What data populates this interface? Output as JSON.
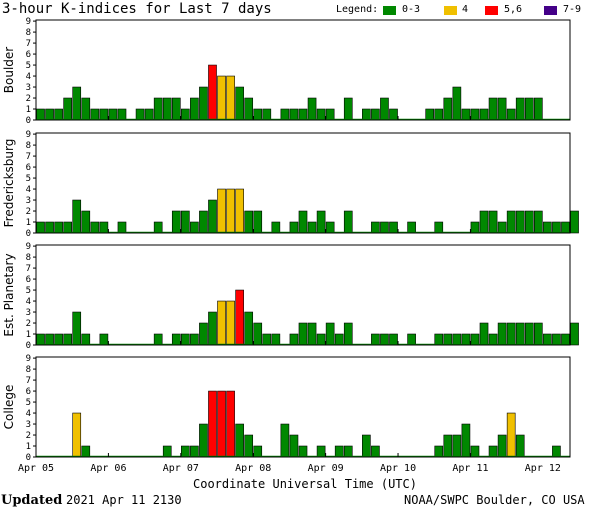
{
  "title": "3-hour K-indices for Last 7 days",
  "legend": {
    "label": "Legend:",
    "items": [
      {
        "label": "0-3",
        "color": "#008800"
      },
      {
        "label": "4",
        "color": "#f0c000"
      },
      {
        "label": "5,6",
        "color": "#ff0000"
      },
      {
        "label": "7-9",
        "color": "#440088"
      }
    ]
  },
  "xlabel": "Coordinate Universal Time (UTC)",
  "footer": {
    "updated_label": "Updated",
    "updated_value": "2021 Apr 11 2130",
    "source": "NOAA/SWPC Boulder, CO USA"
  },
  "chart_data": {
    "type": "bar",
    "x_tick_labels": [
      "Apr 05",
      "Apr 06",
      "Apr 07",
      "Apr 08",
      "Apr 09",
      "Apr 10",
      "Apr 11",
      "Apr 12"
    ],
    "ylim": [
      0,
      9
    ],
    "y_ticks": [
      0,
      1,
      2,
      3,
      4,
      5,
      6,
      7,
      8,
      9
    ],
    "panels": [
      {
        "name": "Boulder",
        "values": [
          1,
          1,
          1,
          2,
          3,
          2,
          1,
          1,
          1,
          1,
          0,
          1,
          1,
          2,
          2,
          2,
          1,
          2,
          3,
          5,
          4,
          4,
          3,
          2,
          1,
          1,
          0,
          1,
          1,
          1,
          2,
          1,
          1,
          0,
          2,
          0,
          1,
          1,
          2,
          1,
          0,
          0,
          0,
          1,
          1,
          2,
          3,
          1,
          1,
          1,
          2,
          2,
          1,
          2,
          2,
          2,
          0
        ]
      },
      {
        "name": "Fredericksburg",
        "values": [
          1,
          1,
          1,
          1,
          3,
          2,
          1,
          1,
          0,
          1,
          0,
          0,
          0,
          1,
          0,
          2,
          2,
          1,
          2,
          3,
          4,
          4,
          4,
          2,
          2,
          0,
          1,
          0,
          1,
          2,
          1,
          2,
          1,
          0,
          2,
          0,
          0,
          1,
          1,
          1,
          0,
          1,
          0,
          0,
          1,
          0,
          0,
          0,
          1,
          2,
          2,
          1,
          2,
          2,
          2,
          2,
          1,
          1,
          1,
          2,
          0
        ]
      },
      {
        "name": "Est. Planetary",
        "values": [
          1,
          1,
          1,
          1,
          3,
          1,
          0,
          1,
          0,
          0,
          0,
          0,
          0,
          1,
          0,
          1,
          1,
          1,
          2,
          3,
          4,
          4,
          5,
          3,
          2,
          1,
          1,
          0,
          1,
          2,
          2,
          1,
          2,
          1,
          2,
          0,
          0,
          1,
          1,
          1,
          0,
          1,
          0,
          0,
          1,
          1,
          1,
          1,
          1,
          2,
          1,
          2,
          2,
          2,
          2,
          2,
          1,
          1,
          1,
          2,
          0
        ]
      },
      {
        "name": "College",
        "values": [
          0,
          0,
          0,
          0,
          4,
          1,
          0,
          0,
          0,
          0,
          0,
          0,
          0,
          0,
          1,
          0,
          1,
          1,
          3,
          6,
          6,
          6,
          3,
          2,
          1,
          0,
          0,
          3,
          2,
          1,
          0,
          1,
          0,
          1,
          1,
          0,
          2,
          1,
          0,
          0,
          0,
          0,
          0,
          0,
          1,
          2,
          2,
          3,
          1,
          0,
          1,
          2,
          4,
          2,
          0,
          0,
          0,
          1,
          0
        ]
      }
    ]
  }
}
